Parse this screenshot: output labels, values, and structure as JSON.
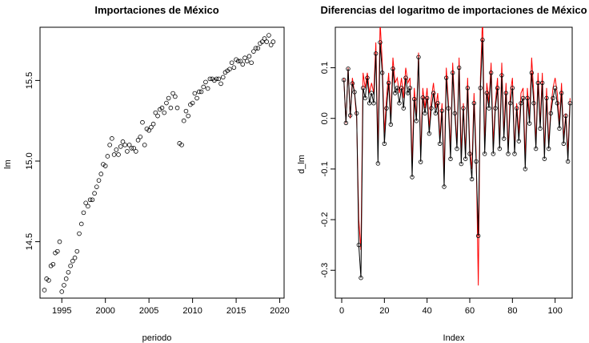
{
  "chart_data": [
    {
      "type": "scatter",
      "title": "Importaciones de México",
      "xlabel": "periodo",
      "ylabel": "lm",
      "xlim": [
        1992.5,
        2020.5
      ],
      "ylim": [
        14.15,
        15.83
      ],
      "xticks": [
        1995,
        2000,
        2005,
        2010,
        2015,
        2020
      ],
      "yticks": [
        14.5,
        15.0,
        15.5
      ],
      "grid": false,
      "x": [
        1993.0,
        1993.25,
        1993.5,
        1993.75,
        1994.0,
        1994.25,
        1994.5,
        1994.75,
        1995.0,
        1995.25,
        1995.5,
        1995.75,
        1996.0,
        1996.25,
        1996.5,
        1996.75,
        1997.0,
        1997.25,
        1997.5,
        1997.75,
        1998.0,
        1998.25,
        1998.5,
        1998.75,
        1999.0,
        1999.25,
        1999.5,
        1999.75,
        2000.0,
        2000.25,
        2000.5,
        2000.75,
        2001.0,
        2001.25,
        2001.5,
        2001.75,
        2002.0,
        2002.25,
        2002.5,
        2002.75,
        2003.0,
        2003.25,
        2003.5,
        2003.75,
        2004.0,
        2004.25,
        2004.5,
        2004.75,
        2005.0,
        2005.25,
        2005.5,
        2005.75,
        2006.0,
        2006.25,
        2006.5,
        2006.75,
        2007.0,
        2007.25,
        2007.5,
        2007.75,
        2008.0,
        2008.25,
        2008.5,
        2008.75,
        2009.0,
        2009.25,
        2009.5,
        2009.75,
        2010.0,
        2010.25,
        2010.5,
        2010.75,
        2011.0,
        2011.25,
        2011.5,
        2011.75,
        2012.0,
        2012.25,
        2012.5,
        2012.75,
        2013.0,
        2013.25,
        2013.5,
        2013.75,
        2014.0,
        2014.25,
        2014.5,
        2014.75,
        2015.0,
        2015.25,
        2015.5,
        2015.75,
        2016.0,
        2016.25,
        2016.5,
        2016.75,
        2017.0,
        2017.25,
        2017.5,
        2017.75,
        2018.0,
        2018.25,
        2018.5,
        2018.75,
        2019.0,
        2019.25
      ],
      "y": [
        14.2,
        14.27,
        14.26,
        14.35,
        14.36,
        14.43,
        14.44,
        14.5,
        14.19,
        14.23,
        14.27,
        14.31,
        14.35,
        14.38,
        14.4,
        14.44,
        14.55,
        14.61,
        14.68,
        14.74,
        14.72,
        14.76,
        14.76,
        14.8,
        14.84,
        14.88,
        14.92,
        14.98,
        14.97,
        15.03,
        15.1,
        15.14,
        15.04,
        15.07,
        15.04,
        15.09,
        15.12,
        15.1,
        15.06,
        15.1,
        15.08,
        15.08,
        15.06,
        15.13,
        15.15,
        15.24,
        15.1,
        15.2,
        15.19,
        15.21,
        15.23,
        15.3,
        15.28,
        15.32,
        15.33,
        15.3,
        15.36,
        15.39,
        15.33,
        15.42,
        15.4,
        15.33,
        15.11,
        15.1,
        15.25,
        15.31,
        15.28,
        15.35,
        15.36,
        15.42,
        15.39,
        15.43,
        15.43,
        15.46,
        15.49,
        15.45,
        15.51,
        15.51,
        15.5,
        15.51,
        15.51,
        15.48,
        15.52,
        15.55,
        15.56,
        15.57,
        15.61,
        15.58,
        15.63,
        15.62,
        15.62,
        15.6,
        15.64,
        15.62,
        15.65,
        15.61,
        15.68,
        15.7,
        15.7,
        15.73,
        15.74,
        15.76,
        15.74,
        15.78,
        15.72,
        15.74
      ]
    },
    {
      "type": "line",
      "title": "Diferencias del logaritmo de importaciones de México",
      "xlabel": "Index",
      "ylabel": "d_lm",
      "xlim": [
        -3,
        108
      ],
      "ylim": [
        -0.355,
        0.18
      ],
      "xticks": [
        0,
        20,
        40,
        60,
        80,
        100
      ],
      "yticks": [
        -0.3,
        -0.2,
        -0.1,
        0.0,
        0.1
      ],
      "grid": false,
      "series": [
        {
          "values": [
            0.076,
            -0.009,
            0.098,
            0.006,
            0.069,
            0.052,
            0.01,
            -0.25,
            -0.315,
            0.06,
            0.04,
            0.08,
            0.03,
            0.05,
            0.03,
            0.128,
            -0.089,
            0.15,
            0.09,
            -0.05,
            0.02,
            0.07,
            -0.012,
            0.098,
            0.05,
            0.06,
            0.03,
            0.06,
            0.02,
            0.08,
            0.05,
            0.06,
            -0.116,
            0.038,
            -0.005,
            0.121,
            -0.086,
            0.041,
            0.01,
            0.04,
            -0.03,
            0.02,
            0.05,
            0.01,
            0.03,
            -0.05,
            0.015,
            -0.135,
            0.08,
            0.02,
            -0.08,
            0.09,
            0.01,
            -0.06,
            0.1,
            -0.09,
            0.02,
            -0.08,
            0.06,
            -0.07,
            -0.12,
            0.03,
            -0.085,
            -0.232,
            0.06,
            0.155,
            -0.07,
            0.05,
            0.02,
            0.09,
            -0.07,
            0.02,
            0.06,
            -0.06,
            0.085,
            -0.04,
            0.05,
            -0.07,
            0.03,
            0.06,
            -0.07,
            0.02,
            -0.045,
            0.03,
            0.04,
            -0.1,
            0.04,
            -0.01,
            0.09,
            0.03,
            -0.06,
            0.07,
            -0.02,
            0.07,
            -0.08,
            0.04,
            -0.06,
            0.01,
            0.04,
            0.06,
            0.03,
            -0.02,
            0.05,
            -0.05,
            0.005,
            -0.085,
            0.03
          ]
        },
        {
          "values": [
            0.08,
            -0.01,
            0.1,
            0.0,
            0.08,
            0.05,
            0.0,
            -0.2,
            -0.26,
            0.09,
            0.06,
            0.09,
            0.05,
            0.07,
            0.05,
            0.15,
            -0.06,
            0.19,
            0.11,
            -0.03,
            0.04,
            0.09,
            0.0,
            0.12,
            0.07,
            0.08,
            0.05,
            0.08,
            0.04,
            0.1,
            0.07,
            0.08,
            -0.09,
            0.06,
            0.0,
            0.13,
            -0.07,
            0.06,
            0.02,
            0.06,
            -0.02,
            0.04,
            0.07,
            0.02,
            0.05,
            -0.04,
            0.03,
            -0.11,
            0.1,
            0.03,
            -0.06,
            0.11,
            0.02,
            -0.05,
            0.12,
            -0.07,
            0.03,
            -0.07,
            0.08,
            -0.06,
            -0.1,
            0.05,
            -0.07,
            -0.33,
            0.08,
            0.2,
            -0.05,
            0.07,
            0.03,
            0.11,
            -0.05,
            0.03,
            0.08,
            -0.05,
            0.11,
            -0.03,
            0.07,
            -0.06,
            0.05,
            0.08,
            -0.06,
            0.03,
            -0.03,
            0.05,
            0.06,
            -0.08,
            0.06,
            0.0,
            0.12,
            0.05,
            -0.05,
            0.09,
            -0.01,
            0.09,
            -0.07,
            0.06,
            -0.05,
            0.02,
            0.06,
            0.08,
            0.05,
            -0.01,
            0.07,
            -0.04,
            0.01,
            -0.07,
            0.04
          ]
        }
      ],
      "colors": [
        "#000000",
        "#ff0000"
      ]
    }
  ]
}
